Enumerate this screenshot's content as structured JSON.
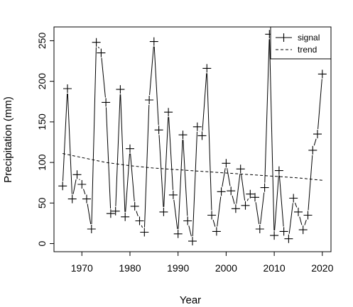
{
  "chart_data": {
    "type": "line",
    "xlabel": "Year",
    "ylabel": "Precipitation (mm)",
    "xlim": [
      1964.2,
      2021.8
    ],
    "ylim": [
      -10,
      267
    ],
    "xticks": [
      1970,
      1980,
      1990,
      2000,
      2010,
      2020
    ],
    "yticks": [
      0,
      50,
      100,
      150,
      200,
      250
    ],
    "grid": false,
    "legend_position": "top-right",
    "series": [
      {
        "name": "signal",
        "style": "solid line with plus markers",
        "color": "#000000",
        "x": [
          1966,
          1967,
          1968,
          1969,
          1970,
          1971,
          1972,
          1973,
          1974,
          1975,
          1976,
          1977,
          1978,
          1979,
          1980,
          1981,
          1982,
          1983,
          1984,
          1985,
          1986,
          1987,
          1988,
          1989,
          1990,
          1991,
          1992,
          1993,
          1994,
          1995,
          1996,
          1997,
          1998,
          1999,
          2000,
          2001,
          2002,
          2003,
          2004,
          2005,
          2006,
          2007,
          2008,
          2009,
          2010,
          2011,
          2012,
          2013,
          2014,
          2015,
          2016,
          2017,
          2018,
          2019,
          2020
        ],
        "y": [
          71,
          191,
          55,
          85,
          73,
          55,
          18,
          248,
          235,
          174,
          37,
          40,
          190,
          33,
          117,
          46,
          28,
          14,
          177,
          249,
          140,
          39,
          162,
          60,
          12,
          134,
          28,
          3,
          144,
          133,
          216,
          35,
          15,
          64,
          99,
          65,
          43,
          92,
          47,
          61,
          57,
          18,
          69,
          258,
          10,
          90,
          15,
          6,
          56,
          39,
          17,
          35,
          115,
          135,
          209
        ]
      },
      {
        "name": "trend",
        "style": "dashed",
        "color": "#000000",
        "x": [
          1966,
          1970,
          1975,
          1980,
          1985,
          1990,
          1995,
          2000,
          2005,
          2010,
          2015,
          2020
        ],
        "y": [
          111,
          106,
          100,
          96,
          93,
          91,
          89,
          87,
          85,
          83,
          81,
          78
        ]
      }
    ]
  }
}
